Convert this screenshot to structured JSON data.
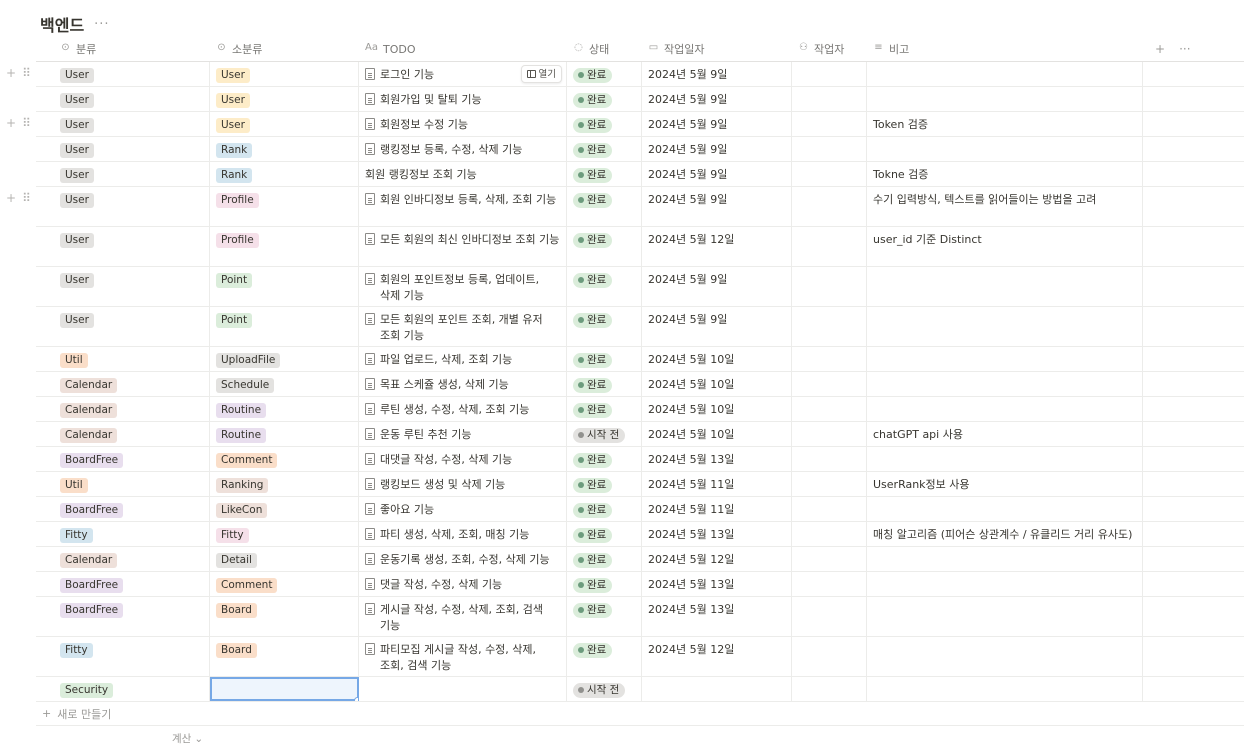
{
  "page": {
    "title": "백엔드",
    "more": "···"
  },
  "columns": [
    {
      "icon": "select-icon",
      "glyph": "⊙",
      "label": "분류"
    },
    {
      "icon": "select-icon",
      "glyph": "⊙",
      "label": "소분류"
    },
    {
      "icon": "title-icon",
      "glyph": "Aa",
      "label": "TODO"
    },
    {
      "icon": "status-icon",
      "glyph": "◌",
      "label": "상태"
    },
    {
      "icon": "calendar-icon",
      "glyph": "▭",
      "label": "작업일자"
    },
    {
      "icon": "people-icon",
      "glyph": "⚇",
      "label": "작업자"
    },
    {
      "icon": "text-icon",
      "glyph": "≡",
      "label": "비고"
    }
  ],
  "header_actions": {
    "add": "+",
    "more": "···"
  },
  "open_button_label": "열기",
  "new_row_label": "새로 만들기",
  "calc_label": "계산",
  "colors": {
    "gray": "#e3e2e0",
    "yellow": "#fdecc8",
    "blue": "#d3e5ef",
    "pink": "#f5e0e9",
    "green": "#dbeddb",
    "orange": "#fadec9",
    "purple": "#e8deee",
    "brown": "#eee0da",
    "status_done_bg": "#dbeddb",
    "status_done_dot": "#6c9b7d",
    "status_todo_bg": "#e3e2e0",
    "status_todo_dot": "#91918e"
  },
  "rows": [
    {
      "cat": "User",
      "cat_color": "gray",
      "sub": "User",
      "sub_color": "yellow",
      "todo": "로그인 기능",
      "doc": true,
      "status": "완료",
      "done": true,
      "date": "2024년 5월 9일",
      "note": "",
      "handle": true,
      "open": true,
      "h": 25
    },
    {
      "cat": "User",
      "cat_color": "gray",
      "sub": "User",
      "sub_color": "yellow",
      "todo": "회원가입 및 탈퇴 기능",
      "doc": true,
      "status": "완료",
      "done": true,
      "date": "2024년 5월 9일",
      "note": "",
      "h": 25
    },
    {
      "cat": "User",
      "cat_color": "gray",
      "sub": "User",
      "sub_color": "yellow",
      "todo": "회원정보 수정 기능",
      "doc": true,
      "status": "완료",
      "done": true,
      "date": "2024년 5월 9일",
      "note": "Token 검증",
      "handle": true,
      "h": 25
    },
    {
      "cat": "User",
      "cat_color": "gray",
      "sub": "Rank",
      "sub_color": "blue",
      "todo": "랭킹정보 등록, 수정, 삭제 기능",
      "doc": true,
      "status": "완료",
      "done": true,
      "date": "2024년 5월 9일",
      "note": "",
      "h": 25
    },
    {
      "cat": "User",
      "cat_color": "gray",
      "sub": "Rank",
      "sub_color": "blue",
      "todo": "회원 랭킹정보 조회 기능",
      "doc": false,
      "status": "완료",
      "done": true,
      "date": "2024년 5월 9일",
      "note": "Tokne 검증",
      "h": 25
    },
    {
      "cat": "User",
      "cat_color": "gray",
      "sub": "Profile",
      "sub_color": "pink",
      "todo": "회원 인바디정보 등록, 삭제, 조회 기능",
      "doc": true,
      "status": "완료",
      "done": true,
      "date": "2024년 5월 9일",
      "note": "수기 입력방식, 텍스트를 읽어들이는 방법을 고려",
      "handle": true,
      "h": 40
    },
    {
      "cat": "User",
      "cat_color": "gray",
      "sub": "Profile",
      "sub_color": "pink",
      "todo": "모든 회원의 최신 인바디정보 조회 기능",
      "doc": true,
      "status": "완료",
      "done": true,
      "date": "2024년 5월 12일",
      "note": "user_id 기준 Distinct",
      "h": 40
    },
    {
      "cat": "User",
      "cat_color": "gray",
      "sub": "Point",
      "sub_color": "green",
      "todo": "회원의 포인트정보 등록, 업데이트, 삭제 기능",
      "doc": true,
      "status": "완료",
      "done": true,
      "date": "2024년 5월 9일",
      "note": "",
      "h": 40
    },
    {
      "cat": "User",
      "cat_color": "gray",
      "sub": "Point",
      "sub_color": "green",
      "todo": "모든 회원의 포인트 조회, 개별 유저 조회 기능",
      "doc": true,
      "status": "완료",
      "done": true,
      "date": "2024년 5월 9일",
      "note": "",
      "h": 40
    },
    {
      "cat": "Util",
      "cat_color": "orange",
      "sub": "UploadFile",
      "sub_color": "gray",
      "todo": "파일 업로드, 삭제, 조회 기능",
      "doc": true,
      "status": "완료",
      "done": true,
      "date": "2024년 5월 10일",
      "note": "",
      "h": 25
    },
    {
      "cat": "Calendar",
      "cat_color": "brown",
      "sub": "Schedule",
      "sub_color": "gray",
      "todo": "목표 스케쥴 생성, 삭제 기능",
      "doc": true,
      "status": "완료",
      "done": true,
      "date": "2024년 5월 10일",
      "note": "",
      "h": 25
    },
    {
      "cat": "Calendar",
      "cat_color": "brown",
      "sub": "Routine",
      "sub_color": "purple",
      "todo": "루틴 생성, 수정, 삭제, 조회 기능",
      "doc": true,
      "status": "완료",
      "done": true,
      "date": "2024년 5월 10일",
      "note": "",
      "h": 25
    },
    {
      "cat": "Calendar",
      "cat_color": "brown",
      "sub": "Routine",
      "sub_color": "purple",
      "todo": "운동 루틴 추천 기능",
      "doc": true,
      "status": "시작 전",
      "done": false,
      "date": "2024년 5월 10일",
      "note": "chatGPT api 사용",
      "h": 25
    },
    {
      "cat": "BoardFree",
      "cat_color": "purple",
      "sub": "Comment",
      "sub_color": "orange",
      "todo": "대댓글 작성, 수정, 삭제 기능",
      "doc": true,
      "status": "완료",
      "done": true,
      "date": "2024년 5월 13일",
      "note": "",
      "h": 25
    },
    {
      "cat": "Util",
      "cat_color": "orange",
      "sub": "Ranking",
      "sub_color": "brown",
      "todo": "랭킹보드 생성 및 삭제 기능",
      "doc": true,
      "status": "완료",
      "done": true,
      "date": "2024년 5월 11일",
      "note": "UserRank정보 사용",
      "h": 25
    },
    {
      "cat": "BoardFree",
      "cat_color": "purple",
      "sub": "LikeCon",
      "sub_color": "brown",
      "todo": "좋아요 기능",
      "doc": true,
      "status": "완료",
      "done": true,
      "date": "2024년 5월 11일",
      "note": "",
      "h": 25
    },
    {
      "cat": "Fitty",
      "cat_color": "blue",
      "sub": "Fitty",
      "sub_color": "pink",
      "todo": "파티 생성, 삭제, 조회, 매칭 기능",
      "doc": true,
      "status": "완료",
      "done": true,
      "date": "2024년 5월 13일",
      "note": "매칭 알고리즘 (피어슨 상관계수 / 유클리드 거리 유사도)",
      "h": 25
    },
    {
      "cat": "Calendar",
      "cat_color": "brown",
      "sub": "Detail",
      "sub_color": "gray",
      "todo": "운동기록 생성, 조회, 수정, 삭제 기능",
      "doc": true,
      "status": "완료",
      "done": true,
      "date": "2024년 5월 12일",
      "note": "",
      "h": 25
    },
    {
      "cat": "BoardFree",
      "cat_color": "purple",
      "sub": "Comment",
      "sub_color": "orange",
      "todo": "댓글 작성, 수정, 삭제 기능",
      "doc": true,
      "status": "완료",
      "done": true,
      "date": "2024년 5월 13일",
      "note": "",
      "h": 25
    },
    {
      "cat": "BoardFree",
      "cat_color": "purple",
      "sub": "Board",
      "sub_color": "orange",
      "todo": "게시글 작성, 수정, 삭제, 조회, 검색 기능",
      "doc": true,
      "status": "완료",
      "done": true,
      "date": "2024년 5월 13일",
      "note": "",
      "h": 40
    },
    {
      "cat": "Fitty",
      "cat_color": "blue",
      "sub": "Board",
      "sub_color": "orange",
      "todo": "파티모집 게시글 작성, 수정, 삭제, 조회, 검색 기능",
      "doc": true,
      "status": "완료",
      "done": true,
      "date": "2024년 5월 12일",
      "note": "",
      "h": 40
    },
    {
      "cat": "Security",
      "cat_color": "green",
      "sub": "",
      "sub_color": "",
      "todo": "",
      "doc": false,
      "status": "시작 전",
      "done": false,
      "date": "",
      "note": "",
      "selected": true,
      "h": 25
    }
  ]
}
